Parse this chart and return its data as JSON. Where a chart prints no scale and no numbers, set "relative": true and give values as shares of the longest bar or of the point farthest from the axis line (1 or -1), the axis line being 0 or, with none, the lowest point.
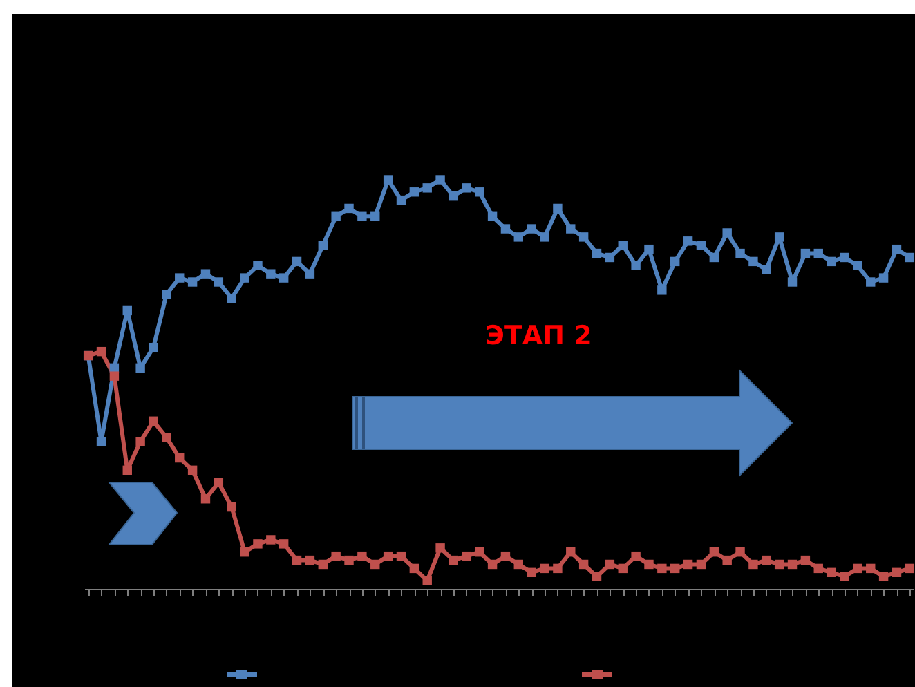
{
  "chart_data": {
    "type": "line",
    "relative": true,
    "marker": "square",
    "grid": false,
    "annotations": [
      "ЭТАП 2"
    ],
    "categories": [
      null,
      null,
      null,
      null,
      null,
      null,
      null,
      null,
      null,
      null,
      null,
      null,
      null,
      null,
      null,
      null,
      null,
      null,
      null,
      null,
      null,
      null,
      null,
      null,
      null,
      null,
      null,
      null,
      null,
      null,
      null,
      null,
      null,
      null,
      null,
      null,
      null,
      null,
      null,
      null,
      null,
      null,
      null,
      null,
      null,
      null,
      null,
      null,
      null,
      null,
      null,
      null,
      null,
      null,
      null,
      null,
      null,
      null,
      null,
      null,
      null,
      null,
      null,
      null
    ],
    "series": [
      {
        "color": "#4f81bd",
        "values": [
          0.57,
          0.36,
          0.54,
          0.68,
          0.54,
          0.59,
          0.72,
          0.76,
          0.75,
          0.77,
          0.75,
          0.71,
          0.76,
          0.79,
          0.77,
          0.76,
          0.8,
          0.77,
          0.84,
          0.91,
          0.93,
          0.91,
          0.91,
          1,
          0.95,
          0.97,
          0.98,
          1,
          0.96,
          0.98,
          0.97,
          0.91,
          0.88,
          0.86,
          0.88,
          0.86,
          0.93,
          0.88,
          0.86,
          0.82,
          0.81,
          0.84,
          0.79,
          0.83,
          0.73,
          0.8,
          0.85,
          0.84,
          0.81,
          0.87,
          0.82,
          0.8,
          0.78,
          0.86,
          0.75,
          0.82,
          0.82,
          0.8,
          0.81,
          0.79,
          0.75,
          0.76,
          0.83,
          0.81
        ]
      },
      {
        "color": "#c0504d",
        "values": [
          0.57,
          0.58,
          0.52,
          0.29,
          0.36,
          0.41,
          0.37,
          0.32,
          0.29,
          0.22,
          0.26,
          0.2,
          0.09,
          0.11,
          0.12,
          0.11,
          0.07,
          0.07,
          0.06,
          0.08,
          0.07,
          0.08,
          0.06,
          0.08,
          0.08,
          0.05,
          0.02,
          0.1,
          0.07,
          0.08,
          0.09,
          0.06,
          0.08,
          0.06,
          0.04,
          0.05,
          0.05,
          0.09,
          0.06,
          0.03,
          0.06,
          0.05,
          0.08,
          0.06,
          0.05,
          0.05,
          0.06,
          0.06,
          0.09,
          0.07,
          0.09,
          0.06,
          0.07,
          0.06,
          0.06,
          0.07,
          0.05,
          0.04,
          0.03,
          0.05,
          0.05,
          0.03,
          0.04,
          0.05
        ]
      }
    ]
  }
}
